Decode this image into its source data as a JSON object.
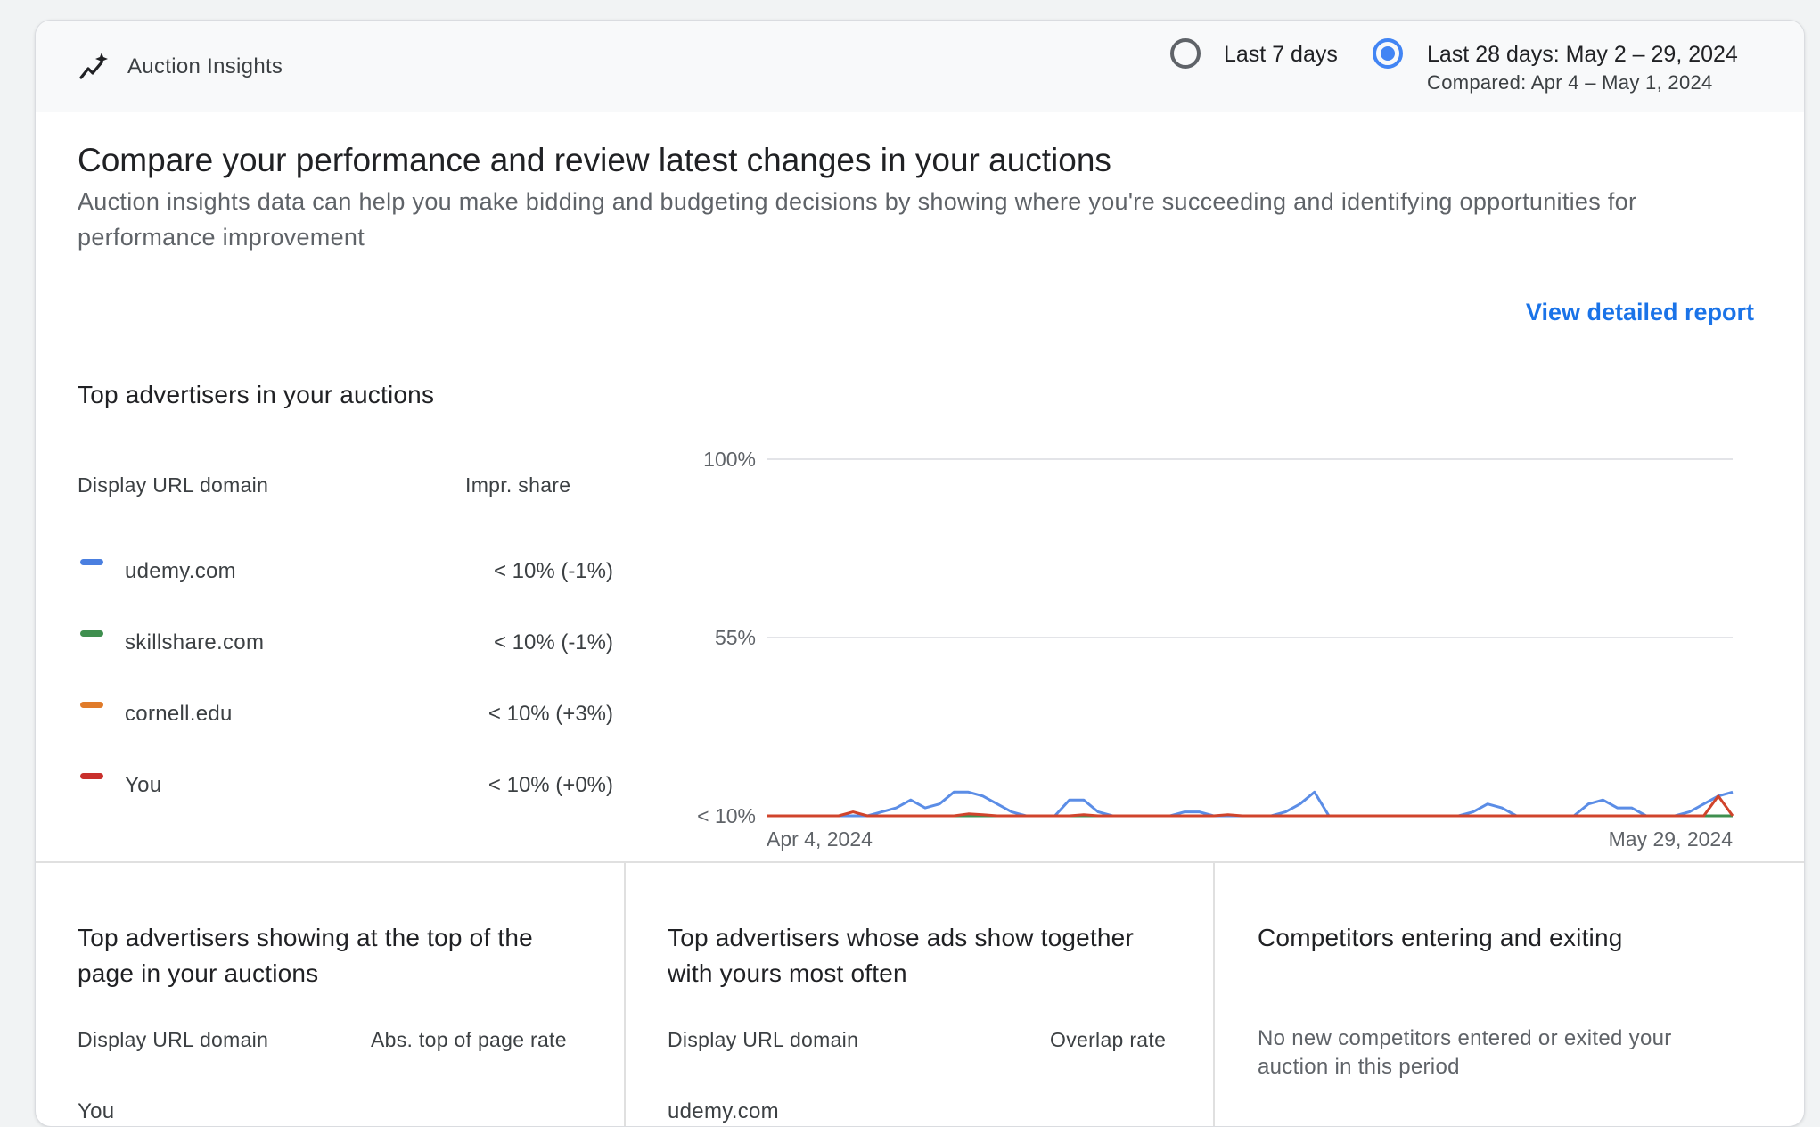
{
  "header": {
    "title": "Auction Insights",
    "icon": "sparkle-trend-icon",
    "ranges": [
      {
        "label": "Last 7 days",
        "selected": false
      },
      {
        "label": "Last 28 days: May 2 – 29, 2024",
        "sublabel": "Compared: Apr 4 – May 1, 2024",
        "selected": true
      }
    ]
  },
  "main": {
    "title": "Compare your performance and review latest changes in your auctions",
    "description": "Auction insights data can help you make bidding and budgeting decisions by showing where you're succeeding and identifying opportunities for performance improvement",
    "detail_link": "View detailed report"
  },
  "top_advertisers": {
    "title": "Top advertisers in your auctions",
    "col_domain": "Display URL domain",
    "col_share": "Impr. share",
    "rows": [
      {
        "domain": "udemy.com",
        "share": "< 10% (-1%)",
        "color": "#4a7fe0"
      },
      {
        "domain": "skillshare.com",
        "share": "< 10% (-1%)",
        "color": "#3f8f4f"
      },
      {
        "domain": "cornell.edu",
        "share": "< 10% (+3%)",
        "color": "#e07b2a"
      },
      {
        "domain": "You",
        "share": "< 10% (+0%)",
        "color": "#c9302c"
      }
    ]
  },
  "chart_data": {
    "type": "line",
    "y_ticks": [
      "100%",
      "55%",
      "< 10%"
    ],
    "y_tick_values": [
      100,
      55,
      10
    ],
    "ylim": [
      10,
      100
    ],
    "x_start_label": "Apr 4, 2024",
    "x_end_label": "May 29, 2024",
    "grid": true,
    "series": [
      {
        "name": "udemy.com",
        "color": "#5b8de6",
        "values": [
          10,
          10,
          10,
          10,
          10,
          10,
          10,
          10,
          11,
          12,
          14,
          12,
          13,
          16,
          16,
          15,
          13,
          11,
          10,
          10,
          10,
          14,
          14,
          11,
          10,
          10,
          10,
          10,
          10,
          11,
          11,
          10,
          10,
          10,
          10,
          10,
          11,
          13,
          16,
          10,
          10,
          10,
          10,
          10,
          10,
          10,
          10,
          10,
          10,
          11,
          13,
          12,
          10,
          10,
          10,
          10,
          10,
          13,
          14,
          12,
          12,
          10,
          10,
          10,
          11,
          13,
          15,
          16
        ]
      },
      {
        "name": "skillshare.com",
        "color": "#3f8f4f",
        "values": [
          10,
          10,
          10,
          10,
          10,
          10,
          10,
          10,
          10,
          10,
          10,
          10,
          10,
          10,
          10,
          10,
          10,
          10,
          10,
          10,
          10,
          10,
          10,
          10,
          10,
          10,
          10,
          10,
          10,
          10,
          10,
          10,
          10,
          10,
          10,
          10,
          10,
          10,
          10,
          10,
          10,
          10,
          10,
          10,
          10,
          10,
          10,
          10,
          10,
          10,
          10,
          10,
          10,
          10,
          10,
          10,
          10,
          10,
          10,
          10,
          10,
          10,
          10,
          10,
          10,
          10,
          10,
          10
        ]
      },
      {
        "name": "cornell.edu",
        "color": "#e07b2a",
        "values": [
          10,
          10,
          10,
          10,
          10,
          10,
          10,
          10,
          10,
          10,
          10,
          10,
          10,
          10,
          10,
          10,
          10,
          10,
          10,
          10,
          10,
          10,
          10,
          10,
          10,
          10,
          10,
          10,
          10,
          10,
          10,
          10,
          10,
          10,
          10,
          10,
          10,
          10,
          10,
          10,
          10,
          10,
          10,
          10,
          10,
          10,
          10,
          10,
          10,
          10,
          10,
          10,
          10,
          10,
          10,
          10,
          10,
          10,
          10,
          10,
          10,
          10,
          10,
          10,
          10,
          10,
          10,
          10
        ]
      },
      {
        "name": "You",
        "color": "#d0442c",
        "values": [
          10,
          10,
          10,
          10,
          10,
          10,
          11,
          10,
          10,
          10,
          10,
          10,
          10,
          10,
          10.5,
          10.3,
          10,
          10,
          10,
          10,
          10,
          10,
          10.3,
          10,
          10,
          10,
          10,
          10,
          10,
          10,
          10,
          10,
          10.3,
          10,
          10,
          10,
          10,
          10,
          10,
          10,
          10,
          10,
          10,
          10,
          10,
          10,
          10,
          10,
          10,
          10,
          10,
          10,
          10,
          10,
          10,
          10,
          10,
          10,
          10,
          10,
          10,
          10,
          10,
          10,
          10,
          10,
          15,
          10
        ]
      }
    ]
  },
  "bottom": {
    "top_of_page": {
      "title_line1": "Top advertisers showing at the top of the",
      "title_line2": "page in your auctions",
      "col_domain": "Display URL domain",
      "col_rate": "Abs. top of page rate",
      "first_row": "You"
    },
    "overlap": {
      "title_line1": "Top advertisers whose ads show together",
      "title_line2": "with yours most often",
      "col_domain": "Display URL domain",
      "col_rate": "Overlap rate",
      "first_row": "udemy.com"
    },
    "competitors": {
      "title": "Competitors entering and exiting",
      "message_line1": "No new competitors entered or exited your",
      "message_line2": "auction in this period"
    }
  }
}
